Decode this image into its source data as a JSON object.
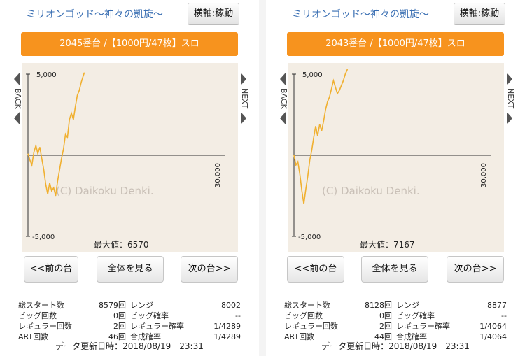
{
  "panels": [
    {
      "title": "ミリオンゴッド〜神々の凱旋〜",
      "axis_toggle": "横軸:稼動",
      "banner": "2045番台 /【1000円/47枚】スロ",
      "chart": {
        "y_top": "5,000",
        "y_bottom": "-5,000",
        "x_max": "30,000",
        "watermark": "(C) Daikoku Denki.",
        "max_label": "最大値：6570",
        "back": "BACK",
        "next": "NEXT"
      },
      "buttons": {
        "prev": "<<前の台",
        "all": "全体を見る",
        "next": "次の台>>"
      },
      "stats": {
        "total_start_label": "総スタート数",
        "total_start": "8579回",
        "range_label": "レンジ",
        "range": "8002",
        "big_label": "ビッグ回数",
        "big": "0回",
        "big_rate_label": "ビッグ確率",
        "big_rate": "--",
        "reg_label": "レギュラー回数",
        "reg": "2回",
        "reg_rate_label": "レギュラー確率",
        "reg_rate": "1/4289",
        "art_label": "ART回数",
        "art": "46回",
        "combined_label": "合成確率",
        "combined": "1/4289"
      },
      "updated": "データ更新日時：2018/08/19　23:31"
    },
    {
      "title": "ミリオンゴッド〜神々の凱旋〜",
      "axis_toggle": "横軸:稼動",
      "banner": "2043番台 /【1000円/47枚】スロ",
      "chart": {
        "y_top": "5,000",
        "y_bottom": "-5,000",
        "x_max": "30,000",
        "watermark": "(C) Daikoku Denki.",
        "max_label": "最大値：7167",
        "back": "BACK",
        "next": "NEXT"
      },
      "buttons": {
        "prev": "<<前の台",
        "all": "全体を見る",
        "next": "次の台>>"
      },
      "stats": {
        "total_start_label": "総スタート数",
        "total_start": "8128回",
        "range_label": "レンジ",
        "range": "8877",
        "big_label": "ビッグ回数",
        "big": "0回",
        "big_rate_label": "ビッグ確率",
        "big_rate": "--",
        "reg_label": "レギュラー回数",
        "reg": "2回",
        "reg_rate_label": "レギュラー確率",
        "reg_rate": "1/4064",
        "art_label": "ART回数",
        "art": "44回",
        "combined_label": "合成確率",
        "combined": "1/4064"
      },
      "updated": "データ更新日時：2018/08/19　23:31"
    }
  ],
  "chart_data": [
    {
      "type": "line",
      "ylim": [
        -5000,
        5000
      ],
      "xlim": [
        0,
        30000
      ],
      "x": [
        0,
        300,
        600,
        900,
        1200,
        1500,
        1800,
        2100,
        2400,
        2700,
        3000,
        3300,
        3600,
        3900,
        4200,
        4500,
        4800,
        5100,
        5400,
        5700,
        6000,
        6300,
        6600,
        6900,
        7200,
        7500,
        7800,
        8100,
        8400,
        8579
      ],
      "y": [
        100,
        -300,
        -600,
        200,
        600,
        100,
        500,
        -200,
        -900,
        -1800,
        -2400,
        -1700,
        -2200,
        -2000,
        -2500,
        -1600,
        -900,
        -200,
        400,
        1300,
        1100,
        2200,
        2600,
        2200,
        3000,
        3700,
        4000,
        4500,
        4900,
        5100
      ],
      "color": "#f0b030"
    },
    {
      "type": "line",
      "ylim": [
        -5000,
        5000
      ],
      "xlim": [
        0,
        30000
      ],
      "x": [
        0,
        300,
        600,
        900,
        1200,
        1500,
        1800,
        2100,
        2400,
        2700,
        3000,
        3300,
        3600,
        3900,
        4200,
        4500,
        4800,
        5100,
        5400,
        5700,
        6000,
        6300,
        6600,
        6900,
        7200,
        7500,
        7800,
        8128
      ],
      "y": [
        0,
        -600,
        -400,
        -1200,
        -2200,
        -3000,
        -2100,
        -1300,
        -300,
        300,
        1100,
        1800,
        1200,
        1900,
        1500,
        2100,
        2800,
        3300,
        3600,
        4100,
        4600,
        4200,
        3800,
        4000,
        4300,
        4600,
        5000,
        5300
      ],
      "color": "#f0b030"
    }
  ]
}
